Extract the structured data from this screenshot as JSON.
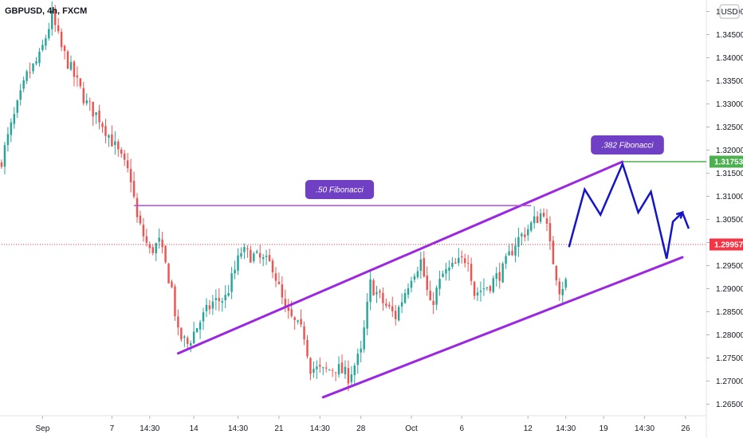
{
  "chart_data": {
    "type": "candlestick",
    "title": "GBPUSD, 4h, FXCM",
    "currency": "USD",
    "colors": {
      "up": "#26a69a",
      "down": "#ef5350",
      "channel": "#9c27e0",
      "forecast": "#1414c8",
      "level_line": "#b44be0",
      "green_level": "#4caf50",
      "current": "#f23645",
      "badge": "#6f3fc4"
    },
    "y_axis": {
      "ylim": [
        1.2625,
        1.3525
      ],
      "ticks": [
        1.265,
        1.27,
        1.275,
        1.28,
        1.285,
        1.29,
        1.295,
        1.3,
        1.305,
        1.31,
        1.315,
        1.32,
        1.325,
        1.33,
        1.335,
        1.34,
        1.345,
        1.35
      ],
      "tick_labels": [
        "1.26500",
        "1.27000",
        "1.27500",
        "1.28000",
        "1.28500",
        "1.29000",
        "1.29500",
        "1.30000",
        "1.30500",
        "1.31000",
        "1.31500",
        "1.32000",
        "1.32500",
        "1.33000",
        "1.33500",
        "1.34000",
        "1.34500",
        "1.35000"
      ]
    },
    "x_axis": {
      "bar_range": [
        0,
        216
      ],
      "ticks": [
        {
          "bar": 13,
          "label": "Sep"
        },
        {
          "bar": 35,
          "label": "7"
        },
        {
          "bar": 47,
          "label": "14:30"
        },
        {
          "bar": 61,
          "label": "14"
        },
        {
          "bar": 75,
          "label": "14:30"
        },
        {
          "bar": 88,
          "label": "21"
        },
        {
          "bar": 101,
          "label": "14:30"
        },
        {
          "bar": 114,
          "label": "28"
        },
        {
          "bar": 130,
          "label": "Oct"
        },
        {
          "bar": 146,
          "label": "6"
        },
        {
          "bar": 167,
          "label": "12"
        },
        {
          "bar": 179,
          "label": "14:30"
        },
        {
          "bar": 191,
          "label": "19"
        },
        {
          "bar": 204,
          "label": "14:30"
        },
        {
          "bar": 217,
          "label": "26"
        }
      ]
    },
    "keypoints": [
      [
        0,
        1.318
      ],
      [
        3,
        1.325
      ],
      [
        8,
        1.336
      ],
      [
        12,
        1.34
      ],
      [
        16,
        1.349
      ],
      [
        19,
        1.342
      ],
      [
        23,
        1.336
      ],
      [
        27,
        1.33
      ],
      [
        31,
        1.327
      ],
      [
        35,
        1.322
      ],
      [
        38,
        1.318
      ],
      [
        41,
        1.314
      ],
      [
        43,
        1.305
      ],
      [
        47,
        1.298
      ],
      [
        50,
        1.3
      ],
      [
        54,
        1.29
      ],
      [
        56,
        1.28
      ],
      [
        59,
        1.278
      ],
      [
        63,
        1.283
      ],
      [
        67,
        1.287
      ],
      [
        71,
        1.288
      ],
      [
        76,
        1.298
      ],
      [
        80,
        1.297
      ],
      [
        86,
        1.295
      ],
      [
        90,
        1.285
      ],
      [
        96,
        1.28
      ],
      [
        98,
        1.273
      ],
      [
        102,
        1.272
      ],
      [
        106,
        1.273
      ],
      [
        110,
        1.271
      ],
      [
        114,
        1.276
      ],
      [
        117,
        1.291
      ],
      [
        121,
        1.287
      ],
      [
        125,
        1.284
      ],
      [
        130,
        1.293
      ],
      [
        133,
        1.296
      ],
      [
        136,
        1.286
      ],
      [
        140,
        1.293
      ],
      [
        144,
        1.295
      ],
      [
        148,
        1.297
      ],
      [
        150,
        1.289
      ],
      [
        155,
        1.291
      ],
      [
        159,
        1.294
      ],
      [
        163,
        1.3
      ],
      [
        167,
        1.303
      ],
      [
        172,
        1.307
      ],
      [
        174,
        1.299
      ],
      [
        177,
        1.29
      ],
      [
        179,
        1.2915
      ]
    ],
    "channel_upper": {
      "from": [
        56,
        1.276
      ],
      "to": [
        197,
        1.3175
      ]
    },
    "channel_lower": {
      "from": [
        102,
        1.2665
      ],
      "to": [
        216,
        1.2968
      ]
    },
    "horizontal_levels": [
      {
        "from_bar": 42,
        "to_bar": 168,
        "price": 1.308,
        "label": ".50 Fibonacci"
      },
      {
        "from_bar": 197,
        "to_bar": 228,
        "price": 1.3175,
        "label": ".382 Fibonacci"
      }
    ],
    "forecast_path": [
      [
        180,
        1.299
      ],
      [
        185,
        1.3115
      ],
      [
        190,
        1.306
      ],
      [
        197,
        1.317
      ],
      [
        202,
        1.3065
      ],
      [
        206,
        1.311
      ],
      [
        211,
        1.2965
      ],
      [
        213,
        1.3045
      ],
      [
        216,
        1.3065
      ],
      [
        218,
        1.303
      ]
    ],
    "last_price": 1.29957,
    "last_price_label": "1.29957",
    "green_price_label": "1.31753"
  }
}
